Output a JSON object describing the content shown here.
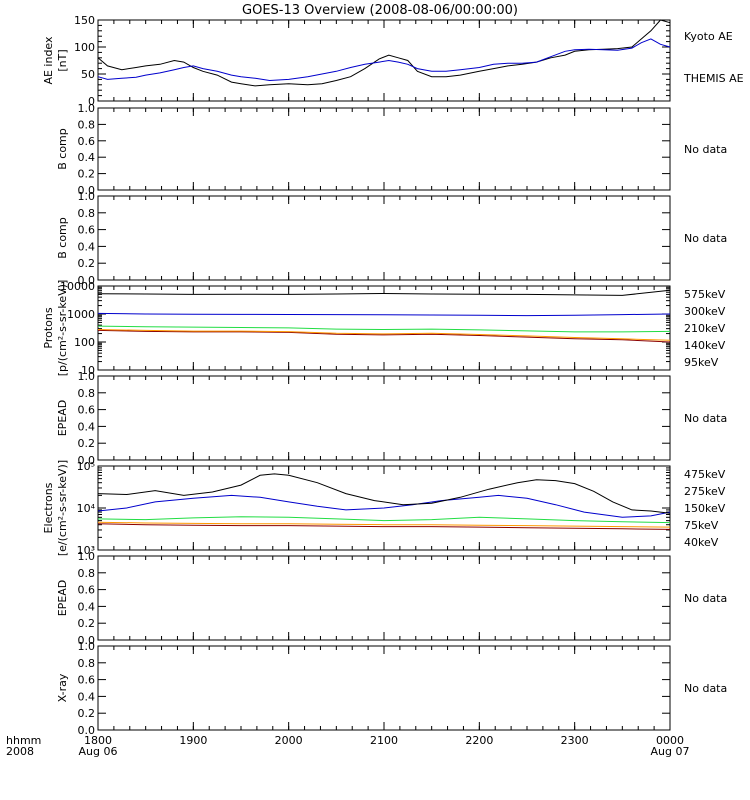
{
  "title": "GOES-13 Overview (2008-08-06/00:00:00)",
  "time_axis": {
    "ticks": [
      "1800",
      "1900",
      "2000",
      "2100",
      "2200",
      "2300",
      "0000"
    ],
    "day_labels": [
      {
        "hour": 18,
        "label": "Aug 06"
      },
      {
        "hour": 24,
        "label": "Aug 07"
      }
    ],
    "left_labels": [
      "hhmm",
      "2008"
    ]
  },
  "chart_data": [
    {
      "type": "line",
      "id": "ae",
      "ylabel": [
        "AE index",
        "[nT]"
      ],
      "ylim": [
        0,
        150
      ],
      "yscale": "linear",
      "yticks": [
        0,
        50,
        100,
        150
      ],
      "legend_placement": "right",
      "series": [
        {
          "name": "Kyoto AE",
          "color": "#000000",
          "x": [
            18.0,
            18.1,
            18.25,
            18.4,
            18.5,
            18.65,
            18.8,
            18.9,
            19.0,
            19.1,
            19.25,
            19.4,
            19.5,
            19.65,
            19.8,
            20.0,
            20.2,
            20.35,
            20.5,
            20.65,
            20.8,
            20.95,
            21.05,
            21.15,
            21.25,
            21.35,
            21.5,
            21.65,
            21.8,
            22.0,
            22.15,
            22.3,
            22.45,
            22.6,
            22.75,
            22.9,
            23.0,
            23.15,
            23.3,
            23.45,
            23.6,
            23.7,
            23.8,
            23.9,
            24.0
          ],
          "y": [
            80,
            65,
            58,
            62,
            65,
            68,
            75,
            72,
            62,
            55,
            48,
            35,
            32,
            28,
            30,
            32,
            30,
            32,
            38,
            45,
            60,
            78,
            85,
            80,
            75,
            55,
            45,
            45,
            48,
            55,
            60,
            65,
            68,
            72,
            80,
            85,
            92,
            95,
            96,
            97,
            100,
            115,
            130,
            150,
            145
          ]
        },
        {
          "name": "THEMIS AE",
          "color": "#0000cc",
          "x": [
            18.0,
            18.1,
            18.25,
            18.4,
            18.5,
            18.65,
            18.8,
            18.9,
            19.0,
            19.1,
            19.25,
            19.4,
            19.5,
            19.65,
            19.8,
            20.0,
            20.2,
            20.35,
            20.5,
            20.65,
            20.8,
            20.95,
            21.05,
            21.15,
            21.25,
            21.35,
            21.5,
            21.65,
            21.8,
            22.0,
            22.15,
            22.3,
            22.45,
            22.6,
            22.75,
            22.9,
            23.0,
            23.15,
            23.3,
            23.45,
            23.6,
            23.7,
            23.8,
            23.9,
            24.0
          ],
          "y": [
            45,
            40,
            42,
            44,
            48,
            52,
            58,
            62,
            65,
            60,
            55,
            48,
            45,
            42,
            38,
            40,
            45,
            50,
            55,
            62,
            68,
            72,
            75,
            72,
            68,
            60,
            55,
            55,
            58,
            62,
            68,
            70,
            70,
            72,
            82,
            92,
            95,
            96,
            95,
            94,
            98,
            108,
            115,
            105,
            100
          ]
        }
      ]
    },
    {
      "type": "line",
      "id": "bcomp1",
      "ylabel": [
        "B comp"
      ],
      "ylim": [
        0,
        1
      ],
      "yscale": "linear",
      "yticks": [
        0.0,
        0.2,
        0.4,
        0.6,
        0.8,
        1.0
      ],
      "ytick_labels": [
        "0.0",
        "0.2",
        "0.4",
        "0.6",
        "0.8",
        "1.0"
      ],
      "message": "No data",
      "series": []
    },
    {
      "type": "line",
      "id": "bcomp2",
      "ylabel": [
        "B comp"
      ],
      "ylim": [
        0,
        1
      ],
      "yscale": "linear",
      "yticks": [
        0.0,
        0.2,
        0.4,
        0.6,
        0.8,
        1.0
      ],
      "ytick_labels": [
        "0.0",
        "0.2",
        "0.4",
        "0.6",
        "0.8",
        "1.0"
      ],
      "message": "No data",
      "series": []
    },
    {
      "type": "line",
      "id": "protons",
      "ylabel": [
        "Protons",
        "[p/(cm²-s-sr-keV)]"
      ],
      "ylim": [
        10,
        10000
      ],
      "yscale": "log",
      "yticks": [
        10,
        100,
        1000,
        10000
      ],
      "ytick_labels": [
        "10",
        "100",
        "1000",
        "10000"
      ],
      "series": [
        {
          "name": "575keV",
          "color": "#8b0000",
          "x": [
            18,
            18.5,
            19,
            19.5,
            20,
            20.5,
            21,
            21.5,
            22,
            22.5,
            23,
            23.5,
            24
          ],
          "y": [
            260,
            240,
            230,
            230,
            220,
            190,
            180,
            190,
            170,
            150,
            130,
            120,
            100
          ]
        },
        {
          "name": "300keV",
          "color": "#ff9900",
          "x": [
            18,
            18.5,
            19,
            19.5,
            20,
            20.5,
            21,
            21.5,
            22,
            22.5,
            23,
            23.5,
            24
          ],
          "y": [
            280,
            260,
            245,
            245,
            235,
            205,
            195,
            205,
            185,
            165,
            145,
            130,
            115
          ]
        },
        {
          "name": "210keV",
          "color": "#22dd44",
          "x": [
            18,
            18.5,
            19,
            19.5,
            20,
            20.5,
            21,
            21.5,
            22,
            22.5,
            23,
            23.5,
            24
          ],
          "y": [
            370,
            350,
            340,
            330,
            320,
            290,
            280,
            290,
            270,
            250,
            230,
            230,
            240
          ]
        },
        {
          "name": "140keV",
          "color": "#0000cc",
          "x": [
            18,
            18.5,
            19,
            19.5,
            20,
            20.5,
            21,
            21.5,
            22,
            22.5,
            23,
            23.5,
            24
          ],
          "y": [
            1050,
            1000,
            980,
            970,
            960,
            950,
            940,
            920,
            900,
            880,
            900,
            950,
            1000
          ]
        },
        {
          "name": "95keV",
          "color": "#000000",
          "x": [
            18,
            18.5,
            19,
            19.5,
            20,
            20.5,
            21,
            21.5,
            22,
            22.5,
            23,
            23.5,
            24
          ],
          "y": [
            5300,
            5200,
            5000,
            5100,
            5000,
            5200,
            5400,
            5200,
            5100,
            5000,
            4800,
            4600,
            7000
          ]
        }
      ]
    },
    {
      "type": "line",
      "id": "epead1",
      "ylabel": [
        "EPEAD"
      ],
      "ylim": [
        0,
        1
      ],
      "yscale": "linear",
      "yticks": [
        0.0,
        0.2,
        0.4,
        0.6,
        0.8,
        1.0
      ],
      "ytick_labels": [
        "0.0",
        "0.2",
        "0.4",
        "0.6",
        "0.8",
        "1.0"
      ],
      "message": "No data",
      "series": []
    },
    {
      "type": "line",
      "id": "electrons",
      "ylabel": [
        "Electrons",
        "[e/(cm²-s-sr-keV)]"
      ],
      "ylim": [
        1000,
        100000
      ],
      "yscale": "log",
      "yticks": [
        1000,
        10000,
        100000
      ],
      "ytick_labels": [
        "10³",
        "10⁴",
        "10⁵"
      ],
      "series": [
        {
          "name": "475keV",
          "color": "#8b0000",
          "x": [
            18,
            18.5,
            19,
            19.5,
            20,
            20.5,
            21,
            21.5,
            22,
            22.5,
            23,
            23.5,
            24
          ],
          "y": [
            4200,
            4000,
            3900,
            3800,
            3800,
            3700,
            3600,
            3600,
            3500,
            3400,
            3300,
            3200,
            3100
          ]
        },
        {
          "name": "275keV",
          "color": "#ff9900",
          "x": [
            18,
            18.5,
            19,
            19.5,
            20,
            20.5,
            21,
            21.5,
            22,
            22.5,
            23,
            23.5,
            24
          ],
          "y": [
            4600,
            4400,
            4300,
            4200,
            4200,
            4100,
            4000,
            4000,
            3900,
            3800,
            3700,
            3600,
            3500
          ]
        },
        {
          "name": "150keV",
          "color": "#22dd44",
          "x": [
            18,
            18.5,
            19,
            19.5,
            20,
            20.5,
            21,
            21.5,
            22,
            22.5,
            23,
            23.5,
            24
          ],
          "y": [
            5500,
            5300,
            5800,
            6200,
            6000,
            5500,
            5000,
            5300,
            6000,
            5500,
            5000,
            4700,
            4500
          ]
        },
        {
          "name": "75keV",
          "color": "#0000cc",
          "x": [
            18,
            18.3,
            18.6,
            19,
            19.4,
            19.7,
            20,
            20.3,
            20.6,
            21,
            21.3,
            21.6,
            22,
            22.2,
            22.5,
            22.8,
            23.1,
            23.5,
            23.8,
            24
          ],
          "y": [
            8500,
            10000,
            14000,
            17000,
            20000,
            18000,
            14000,
            11000,
            9000,
            10000,
            12000,
            15000,
            18000,
            20000,
            17000,
            12000,
            8000,
            6000,
            6500,
            8000
          ]
        },
        {
          "name": "40keV",
          "color": "#000000",
          "x": [
            18,
            18.3,
            18.6,
            18.9,
            19.2,
            19.5,
            19.7,
            19.85,
            20,
            20.3,
            20.6,
            20.9,
            21.2,
            21.5,
            21.8,
            22.1,
            22.4,
            22.6,
            22.8,
            23,
            23.2,
            23.4,
            23.6,
            23.8,
            24
          ],
          "y": [
            22000,
            21000,
            26000,
            20000,
            24000,
            35000,
            60000,
            65000,
            60000,
            40000,
            22000,
            15000,
            12000,
            13000,
            18000,
            28000,
            40000,
            47000,
            45000,
            38000,
            25000,
            14000,
            9000,
            8500,
            7500
          ]
        }
      ]
    },
    {
      "type": "line",
      "id": "epead2",
      "ylabel": [
        "EPEAD"
      ],
      "ylim": [
        0,
        1
      ],
      "yscale": "linear",
      "yticks": [
        0.0,
        0.2,
        0.4,
        0.6,
        0.8,
        1.0
      ],
      "ytick_labels": [
        "0.0",
        "0.2",
        "0.4",
        "0.6",
        "0.8",
        "1.0"
      ],
      "message": "No data",
      "series": []
    },
    {
      "type": "line",
      "id": "xray",
      "ylabel": [
        "X-ray"
      ],
      "ylim": [
        0,
        1
      ],
      "yscale": "linear",
      "yticks": [
        0.0,
        0.2,
        0.4,
        0.6,
        0.8,
        1.0
      ],
      "ytick_labels": [
        "0.0",
        "0.2",
        "0.4",
        "0.6",
        "0.8",
        "1.0"
      ],
      "message": "No data",
      "series": []
    }
  ]
}
